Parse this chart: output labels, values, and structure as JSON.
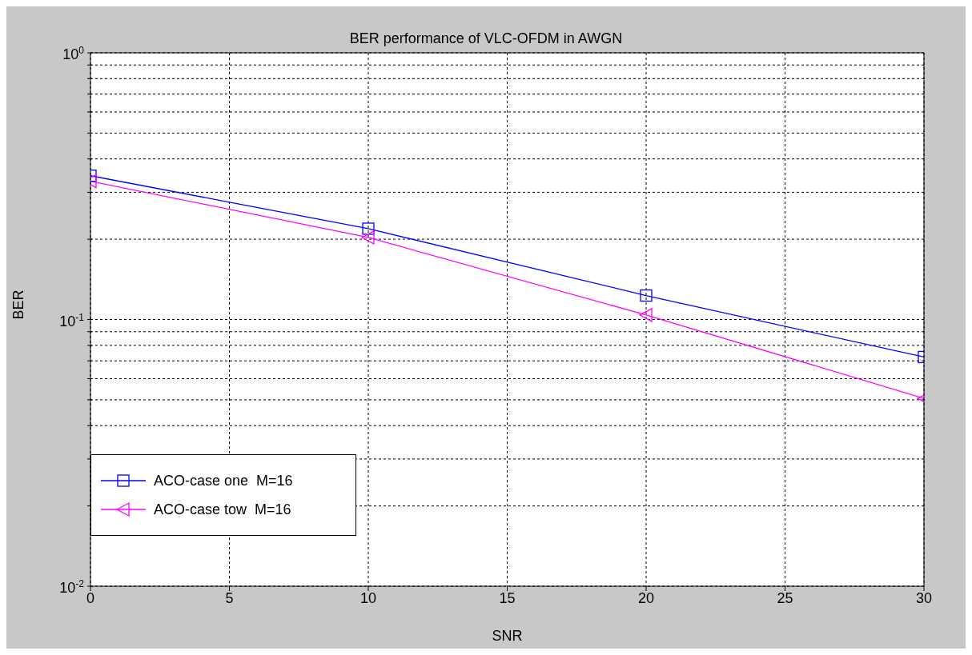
{
  "chart_data": {
    "type": "line",
    "title": "BER performance of VLC-OFDM in AWGN",
    "xlabel": "SNR",
    "ylabel": "BER",
    "x": [
      0,
      10,
      20,
      30
    ],
    "series": [
      {
        "name": "ACO-case one  M=16",
        "color": "#0000ff",
        "marker": "square",
        "values": [
          0.346,
          0.219,
          0.123,
          0.0723
        ]
      },
      {
        "name": "ACO-case tow  M=16",
        "color": "#ff00ff",
        "marker": "triangle-left",
        "values": [
          0.33,
          0.203,
          0.104,
          0.0506
        ]
      }
    ],
    "xlim": [
      0,
      30
    ],
    "xticks": [
      0,
      5,
      10,
      15,
      20,
      25,
      30
    ],
    "ylim": [
      0.01,
      1
    ],
    "yticks": [
      {
        "value": 0.01,
        "label": "10$^{-2}$"
      },
      {
        "value": 0.02,
        "label": null
      },
      {
        "value": 0.03,
        "label": null
      },
      {
        "value": 0.04,
        "label": null
      },
      {
        "value": 0.05,
        "label": null
      },
      {
        "value": 0.06,
        "label": null
      },
      {
        "value": 0.07,
        "label": null
      },
      {
        "value": 0.08,
        "label": null
      },
      {
        "value": 0.09,
        "label": null
      },
      {
        "value": 0.1,
        "label": "10$^{-1}$"
      },
      {
        "value": 0.2,
        "label": null
      },
      {
        "value": 0.3,
        "label": null
      },
      {
        "value": 0.4,
        "label": null
      },
      {
        "value": 0.5,
        "label": null
      },
      {
        "value": 0.6,
        "label": null
      },
      {
        "value": 0.7,
        "label": null
      },
      {
        "value": 0.8,
        "label": null
      },
      {
        "value": 0.9,
        "label": null
      },
      {
        "value": 1,
        "label": "10$^{0}$"
      }
    ],
    "log": "y",
    "grid": true,
    "legend": "bottom left",
    "line_style": "solid"
  }
}
